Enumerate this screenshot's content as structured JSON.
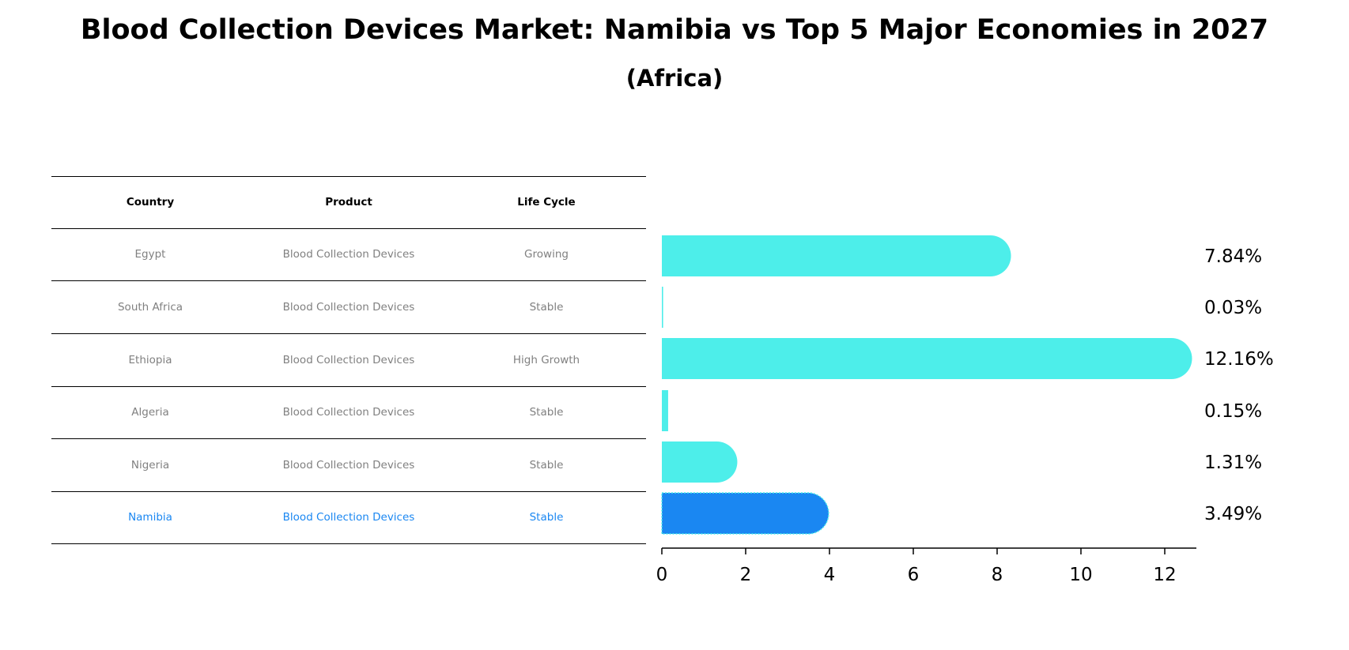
{
  "title": "Blood Collection Devices Market: Namibia vs Top 5 Major Economies in 2027",
  "subtitle": "(Africa)",
  "table": {
    "headers": [
      "Country",
      "Product",
      "Life Cycle"
    ],
    "rows": [
      [
        "Egypt",
        "Blood Collection Devices",
        "Growing"
      ],
      [
        "South Africa",
        "Blood Collection Devices",
        "Stable"
      ],
      [
        "Ethiopia",
        "Blood Collection Devices",
        "High Growth"
      ],
      [
        "Algeria",
        "Blood Collection Devices",
        "Stable"
      ],
      [
        "Nigeria",
        "Blood Collection Devices",
        "Stable"
      ],
      [
        "Namibia",
        "Blood Collection Devices",
        "Stable"
      ]
    ],
    "highlight_row": 5
  },
  "colors": {
    "bar": "#4deeea",
    "highlight": "#1a87f2",
    "text_gray": "#808080"
  },
  "chart_data": {
    "type": "bar",
    "orientation": "horizontal",
    "categories": [
      "Egypt",
      "South Africa",
      "Ethiopia",
      "Algeria",
      "Nigeria",
      "Namibia"
    ],
    "values": [
      7.84,
      0.03,
      12.16,
      0.15,
      1.31,
      3.49
    ],
    "labels": [
      "7.84%",
      "0.03%",
      "12.16%",
      "0.15%",
      "1.31%",
      "3.49%"
    ],
    "xticks": [
      0,
      2,
      4,
      6,
      8,
      10,
      12
    ],
    "xlim": [
      0,
      12.8
    ],
    "highlight": "Namibia"
  }
}
